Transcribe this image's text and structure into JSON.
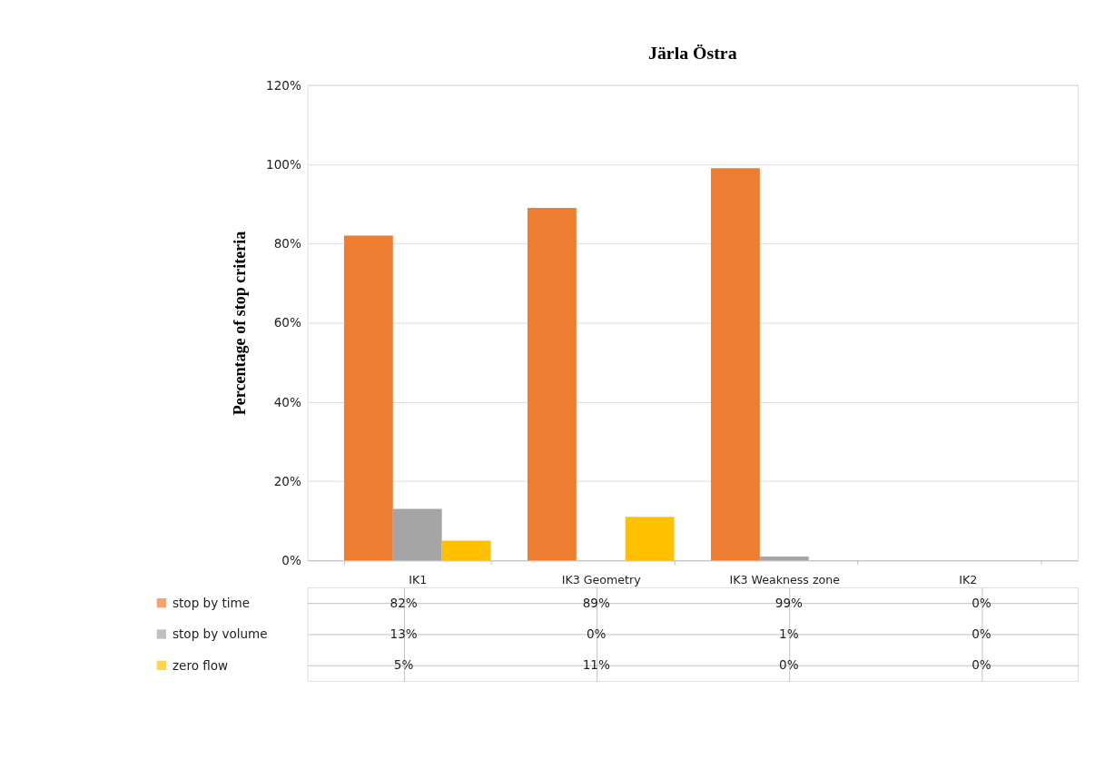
{
  "chart_data": {
    "type": "bar",
    "title": "Järla Östra",
    "ylabel": "Percentage of stop criteria",
    "categories": [
      "IK1",
      "IK3 Geometry",
      "IK3 Weakness zone",
      "IK2"
    ],
    "series": [
      {
        "name": "stop by time",
        "color": "#ed7d31",
        "values": [
          82,
          89,
          99,
          0
        ],
        "value_labels": [
          "82%",
          "89%",
          "99%",
          "0%"
        ]
      },
      {
        "name": "stop by volume",
        "color": "#a5a5a5",
        "values": [
          13,
          0,
          1,
          0
        ],
        "value_labels": [
          "13%",
          "0%",
          "1%",
          "0%"
        ]
      },
      {
        "name": "zero flow",
        "color": "#ffc000",
        "values": [
          5,
          11,
          0,
          0
        ],
        "value_labels": [
          "5%",
          "11%",
          "0%",
          "0%"
        ]
      }
    ],
    "ylim": [
      0,
      120
    ],
    "yticks": [
      {
        "value": 0,
        "label": "0%"
      },
      {
        "value": 20,
        "label": "20%"
      },
      {
        "value": 40,
        "label": "40%"
      },
      {
        "value": 60,
        "label": "60%"
      },
      {
        "value": 80,
        "label": "80%"
      },
      {
        "value": 100,
        "label": "100%"
      },
      {
        "value": 120,
        "label": "120%"
      }
    ],
    "grid": "y",
    "legend": "bottom"
  }
}
